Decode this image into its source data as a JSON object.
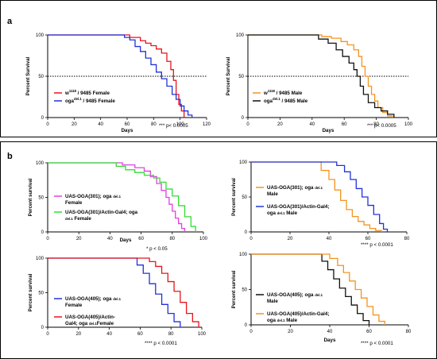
{
  "panels": [
    {
      "label": "a"
    },
    {
      "label": "b"
    }
  ],
  "chart_data": [
    {
      "type": "line",
      "xlabel": "Days",
      "ylabel": "Percent Survival",
      "xlim": [
        0,
        120
      ],
      "ylim": [
        0,
        100
      ],
      "xticks": [
        "0",
        "20",
        "40",
        "60",
        "80",
        "100",
        "120"
      ],
      "yticks": [
        "0",
        "50",
        "100"
      ],
      "reference_line": 50,
      "legend_position": "bottom-left",
      "pvalue": "*** p< 0.0005",
      "series": [
        {
          "legend_parts": [
            "w",
            "1118",
            " / 9485 Female"
          ],
          "color": "#e8141c",
          "x": [
            0,
            57,
            62,
            70,
            74,
            78,
            82,
            86,
            90,
            93,
            95,
            97,
            99,
            101,
            103
          ],
          "y": [
            100,
            100,
            97,
            93,
            90,
            87,
            83,
            78,
            68,
            58,
            45,
            28,
            16,
            8,
            0
          ]
        },
        {
          "legend_parts": [
            "oga",
            "del.1",
            " / 9485 Female"
          ],
          "color": "#2233d8",
          "x": [
            0,
            55,
            58,
            62,
            66,
            70,
            74,
            78,
            82,
            86,
            90,
            94,
            97,
            100,
            103,
            106,
            109
          ],
          "y": [
            100,
            100,
            97,
            94,
            86,
            80,
            72,
            64,
            55,
            47,
            38,
            28,
            22,
            14,
            8,
            3,
            0
          ]
        }
      ]
    },
    {
      "type": "line",
      "xlabel": "Days",
      "ylabel": "Percent Survival",
      "xlim": [
        0,
        100
      ],
      "ylim": [
        0,
        100
      ],
      "xticks": [
        "0",
        "20",
        "40",
        "60",
        "80",
        "100"
      ],
      "yticks": [
        "0",
        "50",
        "100"
      ],
      "reference_line": 50,
      "legend_position": "bottom-left",
      "pvalue": "*** p< 0.0005",
      "series": [
        {
          "legend_parts": [
            "w",
            "1118",
            " / 9485 Male"
          ],
          "color": "#f39420",
          "x": [
            0,
            40,
            46,
            52,
            58,
            62,
            66,
            69,
            71,
            73,
            75,
            77,
            79,
            81,
            84,
            87,
            90
          ],
          "y": [
            100,
            100,
            98,
            96,
            92,
            88,
            82,
            74,
            62,
            50,
            38,
            28,
            20,
            12,
            6,
            2,
            0
          ]
        },
        {
          "legend_parts": [
            "oga",
            "del.1",
            " / 9485 Male"
          ],
          "color": "#111111",
          "x": [
            0,
            38,
            44,
            50,
            55,
            59,
            63,
            66,
            68,
            70,
            72,
            75,
            79,
            83,
            87,
            91
          ],
          "y": [
            100,
            100,
            95,
            90,
            82,
            74,
            66,
            58,
            50,
            38,
            28,
            18,
            12,
            8,
            4,
            0
          ]
        }
      ]
    },
    {
      "type": "line",
      "xlabel": "Days",
      "ylabel": "Percent survival",
      "xlim": [
        0,
        100
      ],
      "ylim": [
        0,
        100
      ],
      "xticks": [
        "0",
        "20",
        "40",
        "60",
        "80",
        "100"
      ],
      "yticks": [
        "0",
        "50",
        "100"
      ],
      "legend_position": "bottom-left",
      "pvalue": "*  p < 0.05",
      "series": [
        {
          "legend_lines": [
            [
              "UAS-OGA(301); ",
              "oga ",
              "del.1"
            ],
            [
              "Female"
            ]
          ],
          "color": "#e040e0",
          "x": [
            0,
            38,
            48,
            56,
            62,
            66,
            70,
            73,
            76,
            78,
            80,
            82,
            84,
            86,
            88
          ],
          "y": [
            100,
            100,
            97,
            93,
            88,
            80,
            70,
            60,
            50,
            40,
            30,
            20,
            12,
            5,
            0
          ]
        },
        {
          "legend_lines": [
            [
              "UAS-OGA(301)/Actin-Gal4; ",
              "oga"
            ],
            [
              "del.1",
              "  Female"
            ]
          ],
          "color": "#33dd33",
          "x": [
            0,
            36,
            44,
            50,
            56,
            62,
            68,
            72,
            76,
            80,
            84,
            88,
            92,
            95
          ],
          "y": [
            100,
            100,
            95,
            90,
            86,
            82,
            78,
            72,
            62,
            52,
            38,
            22,
            8,
            0
          ]
        }
      ]
    },
    {
      "type": "line",
      "xlabel": "",
      "ylabel": "Percent survival",
      "xlim": [
        0,
        80
      ],
      "ylim": [
        0,
        100
      ],
      "xticks": [
        "0",
        "20",
        "40",
        "60",
        "80"
      ],
      "yticks": [
        "0",
        "50",
        "100"
      ],
      "legend_position": "bottom-left",
      "pvalue": "****  p < 0.0001",
      "series": [
        {
          "legend_lines": [
            [
              "UAS-OGA(301); ",
              "oga ",
              "del.1"
            ],
            [
              "Male"
            ]
          ],
          "color": "#f39420",
          "x": [
            0,
            32,
            36,
            40,
            43,
            46,
            49,
            52,
            55,
            58,
            61,
            64,
            67
          ],
          "y": [
            100,
            100,
            88,
            75,
            60,
            45,
            32,
            22,
            15,
            10,
            5,
            2,
            0
          ]
        },
        {
          "legend_lines": [
            [
              "UAS-OGA(301)/Actin-Gal4;"
            ],
            [
              "oga ",
              "del.1",
              "  Male"
            ]
          ],
          "color": "#2233d8",
          "x": [
            0,
            40,
            44,
            48,
            51,
            54,
            57,
            60,
            63,
            66,
            68,
            70
          ],
          "y": [
            100,
            100,
            95,
            86,
            75,
            62,
            50,
            38,
            25,
            12,
            4,
            0
          ]
        }
      ]
    },
    {
      "type": "line",
      "xlabel": "",
      "ylabel": "Percent survival",
      "xlim": [
        0,
        100
      ],
      "ylim": [
        0,
        100
      ],
      "xticks": [
        "0",
        "20",
        "40",
        "60",
        "80",
        "100"
      ],
      "yticks": [
        "0",
        "50",
        "100"
      ],
      "legend_position": "bottom-left",
      "pvalue": "****  p < 0.0001",
      "series": [
        {
          "legend_lines": [
            [
              "UAS-OGA(405); ",
              "oga ",
              "del.1"
            ],
            [
              "Female"
            ]
          ],
          "color": "#2233d8",
          "x": [
            0,
            54,
            58,
            62,
            66,
            70,
            74,
            78,
            82,
            86
          ],
          "y": [
            100,
            100,
            90,
            78,
            63,
            48,
            33,
            20,
            8,
            0
          ]
        },
        {
          "legend_lines": [
            [
              "UAS-OGA(405)/Actin-"
            ],
            [
              "Gal4; ",
              "oga ",
              "del.1",
              "Female"
            ]
          ],
          "color": "#e8141c",
          "x": [
            0,
            62,
            66,
            70,
            74,
            78,
            82,
            86,
            90,
            94,
            98
          ],
          "y": [
            100,
            100,
            95,
            88,
            78,
            66,
            52,
            36,
            20,
            8,
            0
          ]
        }
      ]
    },
    {
      "type": "line",
      "xlabel": "Days",
      "ylabel": "Percent survival",
      "xlim": [
        0,
        80
      ],
      "ylim": [
        0,
        100
      ],
      "xticks": [
        "0",
        "20",
        "40",
        "60",
        "80"
      ],
      "yticks": [
        "0",
        "50",
        "100"
      ],
      "legend_position": "bottom-left",
      "pvalue": "****  p < 0.0001",
      "series": [
        {
          "legend_lines": [
            [
              "UAS-OGA(405); ",
              "oga ",
              "del.1"
            ],
            [
              "Male"
            ]
          ],
          "color": "#111111",
          "x": [
            0,
            32,
            36,
            39,
            42,
            45,
            48,
            51,
            54,
            57,
            60
          ],
          "y": [
            100,
            100,
            90,
            78,
            65,
            52,
            40,
            28,
            16,
            6,
            0
          ]
        },
        {
          "legend_lines": [
            [
              "UAS-OGA(405)/Actin-Gal4;"
            ],
            [
              "oga ",
              "del.1",
              " Male"
            ]
          ],
          "color": "#f39420",
          "x": [
            0,
            36,
            40,
            44,
            47,
            50,
            53,
            56,
            59,
            62,
            65,
            68
          ],
          "y": [
            100,
            100,
            94,
            84,
            74,
            62,
            50,
            38,
            26,
            14,
            5,
            0
          ]
        }
      ]
    }
  ]
}
